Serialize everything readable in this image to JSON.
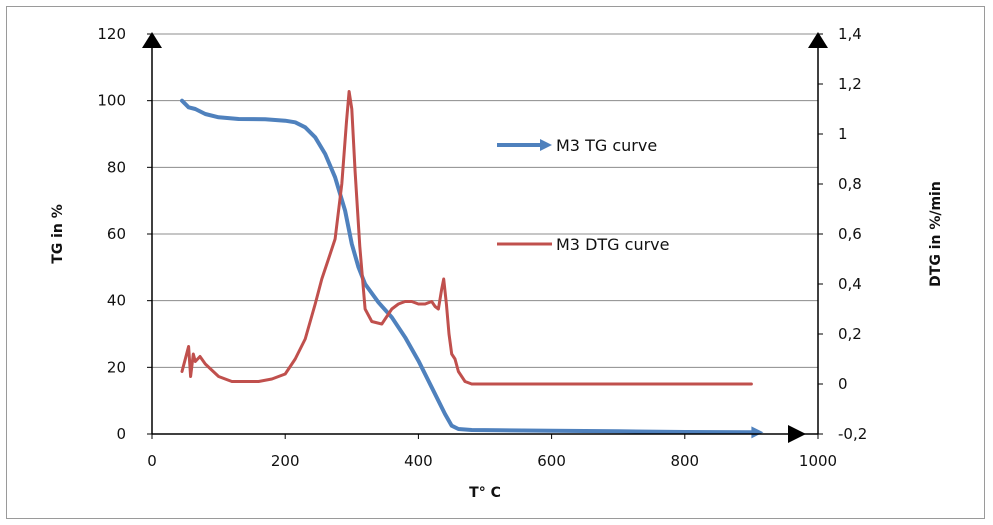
{
  "chart_data": {
    "type": "line",
    "xlabel": "T° C",
    "ylabel": "TG in %",
    "y2label": "DTG in %/min",
    "xlim": [
      0,
      1000
    ],
    "ylim": [
      0,
      120
    ],
    "y2lim": [
      -0.2,
      1.4
    ],
    "x_ticks": [
      "0",
      "200",
      "400",
      "600",
      "800",
      "1000"
    ],
    "y_ticks": [
      "0",
      "20",
      "40",
      "60",
      "80",
      "100",
      "120"
    ],
    "y2_ticks": [
      "-0,2",
      "0",
      "0,2",
      "0,4",
      "0,6",
      "0,8",
      "1",
      "1,2",
      "1,4"
    ],
    "grid": true,
    "series": [
      {
        "name": "M3 TG curve",
        "axis": "left",
        "color": "#4f81bd",
        "x": [
          45,
          55,
          65,
          80,
          100,
          130,
          170,
          200,
          215,
          230,
          245,
          260,
          275,
          290,
          300,
          310,
          320,
          340,
          360,
          380,
          400,
          420,
          440,
          450,
          460,
          480,
          520,
          600,
          700,
          800,
          900
        ],
        "y": [
          100,
          98,
          97.5,
          96,
          95,
          94.5,
          94.4,
          94,
          93.5,
          92,
          89,
          84,
          77,
          67,
          57,
          50,
          45,
          39.5,
          35,
          29,
          22,
          14,
          6,
          2.5,
          1.5,
          1.2,
          1.1,
          1,
          0.8,
          0.6,
          0.5
        ]
      },
      {
        "name": "M3 DTG curve",
        "axis": "right",
        "color": "#c0504d",
        "x": [
          45,
          50,
          55,
          58,
          62,
          65,
          72,
          80,
          100,
          120,
          140,
          160,
          180,
          200,
          215,
          230,
          245,
          255,
          265,
          275,
          285,
          292,
          296,
          300,
          305,
          312,
          320,
          330,
          345,
          360,
          370,
          380,
          390,
          400,
          410,
          420,
          425,
          430,
          435,
          438,
          442,
          446,
          450,
          455,
          460,
          470,
          480,
          520,
          600,
          700,
          800,
          900
        ],
        "y": [
          0.05,
          0.1,
          0.15,
          0.03,
          0.12,
          0.09,
          0.11,
          0.08,
          0.03,
          0.01,
          0.01,
          0.01,
          0.02,
          0.04,
          0.1,
          0.18,
          0.32,
          0.42,
          0.5,
          0.58,
          0.8,
          1.05,
          1.17,
          1.1,
          0.85,
          0.55,
          0.3,
          0.25,
          0.24,
          0.3,
          0.32,
          0.33,
          0.33,
          0.32,
          0.32,
          0.33,
          0.31,
          0.3,
          0.38,
          0.42,
          0.32,
          0.2,
          0.12,
          0.1,
          0.05,
          0.01,
          0.0,
          0.0,
          0.0,
          0.0,
          0.0,
          0.0
        ]
      }
    ]
  }
}
